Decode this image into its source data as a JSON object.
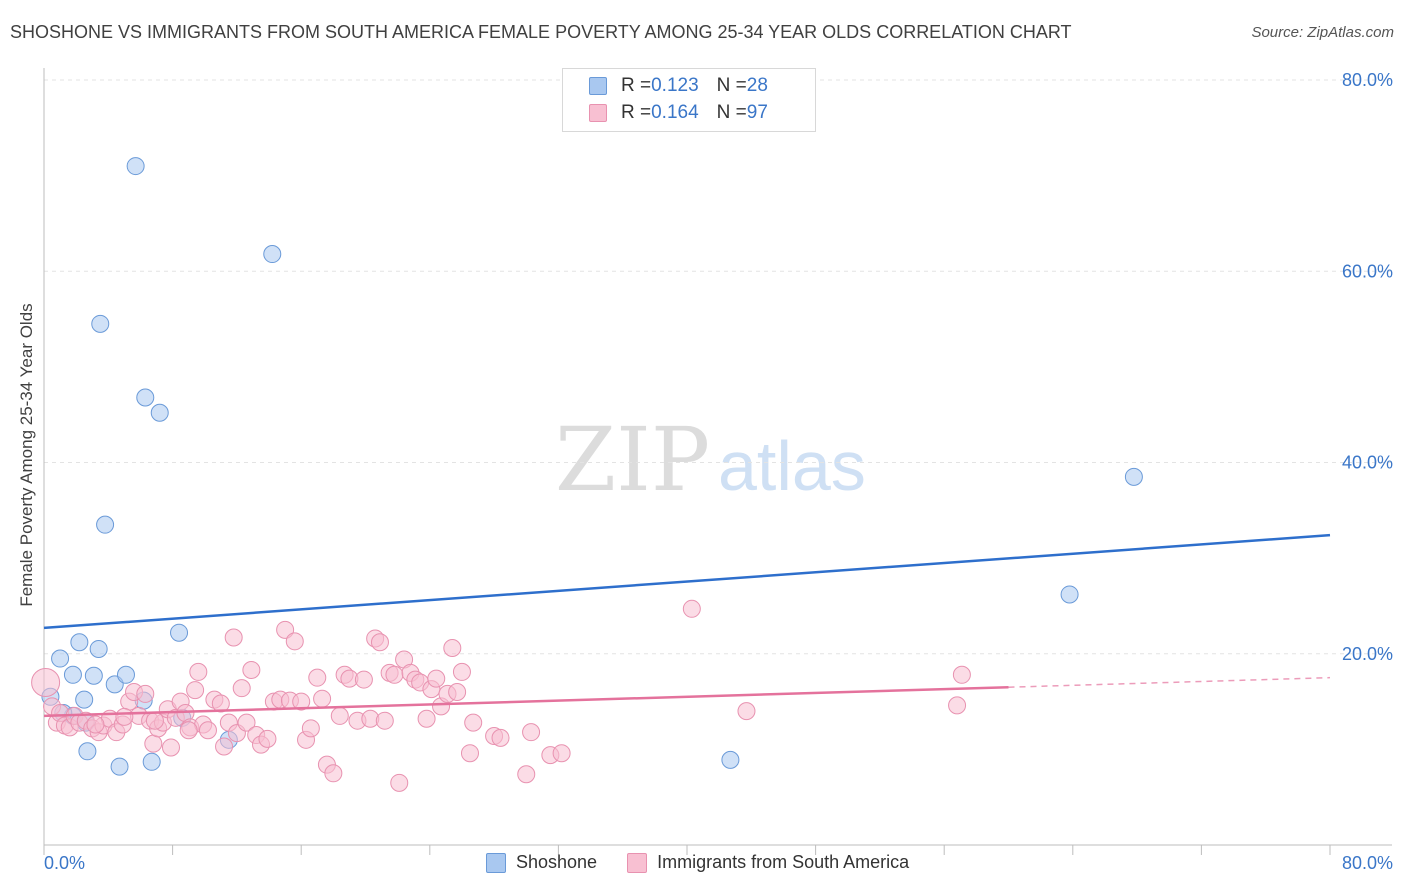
{
  "title": "SHOSHONE VS IMMIGRANTS FROM SOUTH AMERICA FEMALE POVERTY AMONG 25-34 YEAR OLDS CORRELATION CHART",
  "source": "Source: ZipAtlas.com",
  "watermark": {
    "zip": "ZIP",
    "atlas": "atlas"
  },
  "legend_top": {
    "rows": [
      {
        "r_label": "R = ",
        "r_value": "0.123",
        "n_label": "N = ",
        "n_value": "28",
        "color": "#a9c8f0",
        "border": "#6a9ad8"
      },
      {
        "r_label": "R = ",
        "r_value": "0.164",
        "n_label": "N = ",
        "n_value": "97",
        "color": "#f8c0d2",
        "border": "#e892b0"
      }
    ]
  },
  "legend_bottom": [
    {
      "label": "Shoshone",
      "color": "#a9c8f0",
      "border": "#6a9ad8"
    },
    {
      "label": "Immigrants from South America",
      "color": "#f8c0d2",
      "border": "#e892b0"
    }
  ],
  "chart_data": {
    "type": "scatter",
    "title": "SHOSHONE VS IMMIGRANTS FROM SOUTH AMERICA FEMALE POVERTY AMONG 25-34 YEAR OLDS CORRELATION CHART",
    "xlabel": "",
    "ylabel": "Female Poverty Among 25-34 Year Olds",
    "xlim": [
      0,
      80
    ],
    "ylim": [
      0,
      80
    ],
    "x_tick_labels": [
      "0.0%",
      "80.0%"
    ],
    "y_tick_labels": [
      "20.0%",
      "40.0%",
      "60.0%",
      "80.0%"
    ],
    "y_ticks": [
      20,
      40,
      60,
      80
    ],
    "grid": true,
    "legend_position": "top-center",
    "series": [
      {
        "name": "Shoshone",
        "color": "#a9c8f0",
        "stroke": "#6a9ad8",
        "line_color": "#2e6fcc",
        "trend": {
          "x": [
            0,
            80
          ],
          "y": [
            22.7,
            32.4
          ],
          "dashed_from": 80
        },
        "points": [
          [
            0.4,
            15.5
          ],
          [
            1.0,
            19.5
          ],
          [
            1.8,
            13.5
          ],
          [
            1.8,
            17.8
          ],
          [
            2.2,
            21.2
          ],
          [
            2.5,
            15.2
          ],
          [
            2.7,
            9.8
          ],
          [
            3.1,
            17.7
          ],
          [
            3.4,
            20.5
          ],
          [
            3.5,
            54.5
          ],
          [
            3.8,
            33.5
          ],
          [
            4.4,
            16.8
          ],
          [
            4.7,
            8.2
          ],
          [
            5.1,
            17.8
          ],
          [
            5.7,
            71.0
          ],
          [
            6.2,
            15.1
          ],
          [
            6.3,
            46.8
          ],
          [
            6.7,
            8.7
          ],
          [
            7.2,
            45.2
          ],
          [
            8.4,
            22.2
          ],
          [
            8.6,
            13.3
          ],
          [
            11.5,
            11.0
          ],
          [
            14.2,
            61.8
          ],
          [
            42.7,
            8.9
          ],
          [
            63.8,
            26.2
          ],
          [
            67.8,
            38.5
          ],
          [
            1.2,
            13.8
          ],
          [
            2.6,
            12.8
          ]
        ]
      },
      {
        "name": "Immigrants from South America",
        "color": "#f8c0d2",
        "stroke": "#e892b0",
        "line_color": "#e4729c",
        "trend": {
          "x": [
            0,
            80
          ],
          "y": [
            13.5,
            17.5
          ],
          "dashed_from": 60
        },
        "points": [
          [
            0.1,
            17.0
          ],
          [
            0.5,
            14.5
          ],
          [
            0.8,
            12.8
          ],
          [
            1.0,
            13.8
          ],
          [
            1.3,
            12.5
          ],
          [
            1.6,
            12.3
          ],
          [
            1.9,
            13.5
          ],
          [
            2.2,
            12.8
          ],
          [
            2.6,
            13.0
          ],
          [
            3.0,
            12.2
          ],
          [
            3.4,
            11.8
          ],
          [
            3.7,
            12.5
          ],
          [
            4.1,
            13.2
          ],
          [
            4.5,
            11.8
          ],
          [
            4.9,
            12.6
          ],
          [
            5.3,
            15.0
          ],
          [
            5.6,
            16.0
          ],
          [
            5.9,
            13.5
          ],
          [
            6.3,
            15.8
          ],
          [
            6.6,
            13.0
          ],
          [
            6.8,
            10.6
          ],
          [
            7.1,
            12.2
          ],
          [
            7.4,
            12.8
          ],
          [
            7.7,
            14.2
          ],
          [
            7.9,
            10.2
          ],
          [
            8.2,
            13.3
          ],
          [
            8.5,
            15.0
          ],
          [
            8.8,
            13.8
          ],
          [
            9.1,
            12.3
          ],
          [
            9.4,
            16.2
          ],
          [
            9.6,
            18.1
          ],
          [
            9.9,
            12.6
          ],
          [
            10.2,
            12.0
          ],
          [
            10.6,
            15.2
          ],
          [
            11.0,
            14.8
          ],
          [
            11.2,
            10.3
          ],
          [
            11.5,
            12.8
          ],
          [
            11.8,
            21.7
          ],
          [
            12.0,
            11.7
          ],
          [
            12.3,
            16.4
          ],
          [
            12.6,
            12.8
          ],
          [
            12.9,
            18.3
          ],
          [
            13.2,
            11.5
          ],
          [
            13.5,
            10.5
          ],
          [
            13.9,
            11.1
          ],
          [
            14.3,
            15.0
          ],
          [
            14.7,
            15.2
          ],
          [
            15.0,
            22.5
          ],
          [
            15.3,
            15.1
          ],
          [
            15.6,
            21.3
          ],
          [
            16.0,
            15.0
          ],
          [
            16.3,
            11.0
          ],
          [
            16.6,
            12.2
          ],
          [
            17.0,
            17.5
          ],
          [
            17.3,
            15.3
          ],
          [
            17.6,
            8.4
          ],
          [
            18.0,
            7.5
          ],
          [
            18.4,
            13.5
          ],
          [
            18.7,
            17.8
          ],
          [
            19.0,
            17.4
          ],
          [
            19.5,
            13.0
          ],
          [
            19.9,
            17.3
          ],
          [
            20.3,
            13.2
          ],
          [
            20.6,
            21.6
          ],
          [
            20.9,
            21.2
          ],
          [
            21.2,
            13.0
          ],
          [
            21.5,
            18.0
          ],
          [
            21.8,
            17.8
          ],
          [
            22.1,
            6.5
          ],
          [
            22.4,
            19.4
          ],
          [
            22.8,
            18.0
          ],
          [
            23.1,
            17.3
          ],
          [
            23.4,
            17.0
          ],
          [
            23.8,
            13.2
          ],
          [
            24.1,
            16.3
          ],
          [
            24.4,
            17.4
          ],
          [
            24.7,
            14.5
          ],
          [
            25.1,
            15.8
          ],
          [
            25.4,
            20.6
          ],
          [
            25.7,
            16.0
          ],
          [
            26.0,
            18.1
          ],
          [
            26.5,
            9.6
          ],
          [
            26.7,
            12.8
          ],
          [
            28.0,
            11.4
          ],
          [
            28.4,
            11.2
          ],
          [
            30.0,
            7.4
          ],
          [
            30.3,
            11.8
          ],
          [
            31.5,
            9.4
          ],
          [
            32.2,
            9.6
          ],
          [
            40.3,
            24.7
          ],
          [
            43.7,
            14.0
          ],
          [
            56.8,
            14.6
          ],
          [
            57.1,
            17.8
          ],
          [
            6.9,
            13.0
          ],
          [
            3.2,
            12.6
          ],
          [
            5.0,
            13.4
          ],
          [
            9.0,
            12.0
          ]
        ]
      }
    ]
  }
}
